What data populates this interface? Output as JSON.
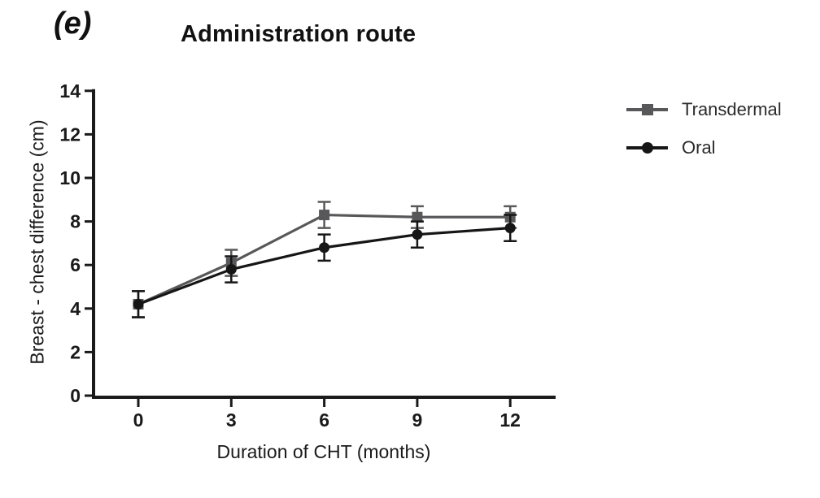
{
  "panel_label": "(e)",
  "title": "Administration route",
  "colors": {
    "background": "#ffffff",
    "axis": "#1a1a1a",
    "transdermal": "#58585a",
    "oral": "#161616"
  },
  "chart_data": {
    "type": "line",
    "title": "Administration route",
    "xlabel": "Duration of CHT (months)",
    "ylabel": "Breast - chest difference (cm)",
    "x": [
      0,
      3,
      6,
      9,
      12
    ],
    "x_ticks": [
      0,
      3,
      6,
      9,
      12
    ],
    "y_ticks": [
      0,
      2,
      4,
      6,
      8,
      10,
      12,
      14
    ],
    "xlim": [
      -1.5,
      13.5
    ],
    "ylim": [
      0,
      14
    ],
    "grid": false,
    "legend_position": "right",
    "error_bars": true,
    "series": [
      {
        "name": "Transdermal",
        "marker": "square",
        "color": "#58585a",
        "values": [
          4.2,
          6.1,
          8.3,
          8.2,
          8.2
        ],
        "errors": [
          0.6,
          0.6,
          0.6,
          0.5,
          0.5
        ]
      },
      {
        "name": "Oral",
        "marker": "circle",
        "color": "#161616",
        "values": [
          4.2,
          5.8,
          6.8,
          7.4,
          7.7
        ],
        "errors": [
          0.6,
          0.6,
          0.6,
          0.6,
          0.6
        ]
      }
    ]
  }
}
